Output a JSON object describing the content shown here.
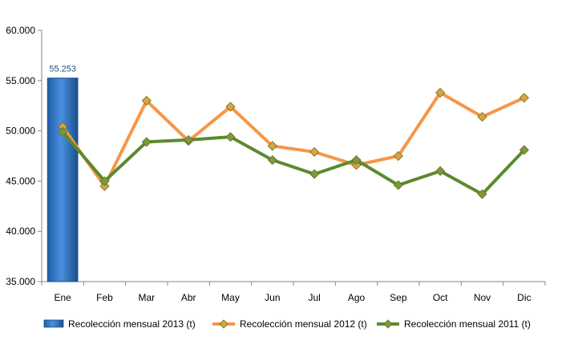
{
  "chart_data": {
    "type": "bar+line",
    "categories": [
      "Ene",
      "Feb",
      "Mar",
      "Abr",
      "May",
      "Jun",
      "Jul",
      "Ago",
      "Sep",
      "Oct",
      "Nov",
      "Dic"
    ],
    "ylim": [
      35000,
      60000
    ],
    "y_ticks": [
      35000,
      40000,
      45000,
      50000,
      55000,
      60000
    ],
    "y_tick_labels": [
      "35.000",
      "40.000",
      "45.000",
      "50.000",
      "55.000",
      "60.000"
    ],
    "grid": false,
    "legend_position": "bottom",
    "series": [
      {
        "name": "Recolección mensual 2013 (t)",
        "type": "bar",
        "color": "#2E75C8",
        "values": [
          55253,
          null,
          null,
          null,
          null,
          null,
          null,
          null,
          null,
          null,
          null,
          null
        ],
        "data_labels": [
          "55.253"
        ]
      },
      {
        "name": "Recolección mensual 2012 (t)",
        "type": "line",
        "color": "#F79646",
        "marker_color": "#D9A441",
        "values": [
          50400,
          44500,
          53000,
          49000,
          52400,
          48500,
          47900,
          46600,
          47500,
          53800,
          51400,
          53300
        ]
      },
      {
        "name": "Recolección mensual 2011 (t)",
        "type": "line",
        "color": "#5B8A2E",
        "marker_color": "#7A9A3A",
        "values": [
          49900,
          45000,
          48900,
          49100,
          49400,
          47100,
          45700,
          47100,
          44600,
          46000,
          43700,
          48100
        ]
      }
    ]
  }
}
